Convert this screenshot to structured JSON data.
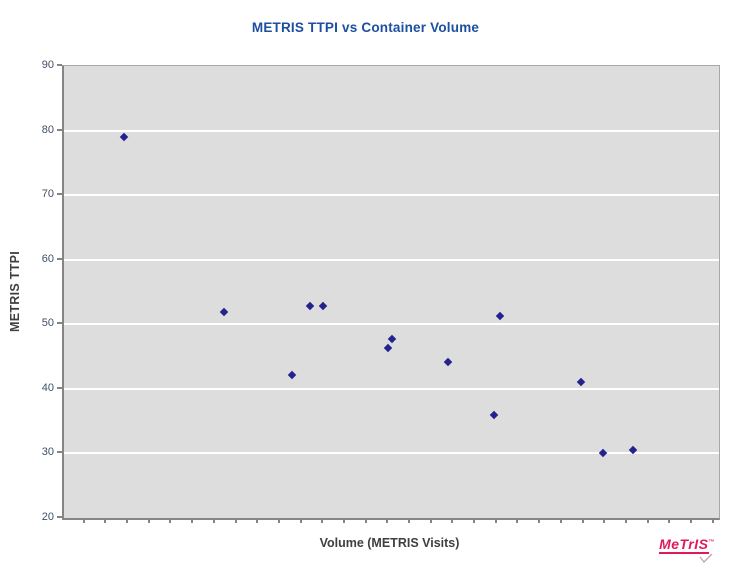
{
  "chart": {
    "title": "METRIS TTPI vs Container Volume",
    "title_color": "#1c4fa1",
    "axis_title_color": "#3f3f3f",
    "tick_label_color": "#415065"
  },
  "logo": {
    "text": "MeTrIS",
    "tm_mark": "™",
    "color": "#e0195e"
  },
  "chart_data": {
    "type": "scatter",
    "title": "METRIS TTPI vs Container Volume",
    "xlabel": "Volume (METRIS Visits)",
    "ylabel": "METRIS TTPI",
    "ylim": [
      20,
      90
    ],
    "y_ticks": [
      90,
      80,
      70,
      60,
      50,
      40,
      30,
      20
    ],
    "x_tick_labels_visible": false,
    "x_minor_tick_count": 30,
    "legend": "none",
    "grid": "horizontal-only",
    "gridline_color": "#ffffff",
    "plot_bg_color": "#dddddd",
    "marker_shape": "diamond",
    "marker_color": "#23238f",
    "points": [
      {
        "x_frac": 0.092,
        "ttpi": 79.0
      },
      {
        "x_frac": 0.244,
        "ttpi": 51.9
      },
      {
        "x_frac": 0.348,
        "ttpi": 42.2
      },
      {
        "x_frac": 0.376,
        "ttpi": 52.8
      },
      {
        "x_frac": 0.395,
        "ttpi": 52.8
      },
      {
        "x_frac": 0.495,
        "ttpi": 46.4
      },
      {
        "x_frac": 0.5,
        "ttpi": 47.7
      },
      {
        "x_frac": 0.587,
        "ttpi": 44.2
      },
      {
        "x_frac": 0.656,
        "ttpi": 35.9
      },
      {
        "x_frac": 0.666,
        "ttpi": 51.3
      },
      {
        "x_frac": 0.79,
        "ttpi": 41.0
      },
      {
        "x_frac": 0.823,
        "ttpi": 30.1
      },
      {
        "x_frac": 0.868,
        "ttpi": 30.6
      }
    ]
  }
}
